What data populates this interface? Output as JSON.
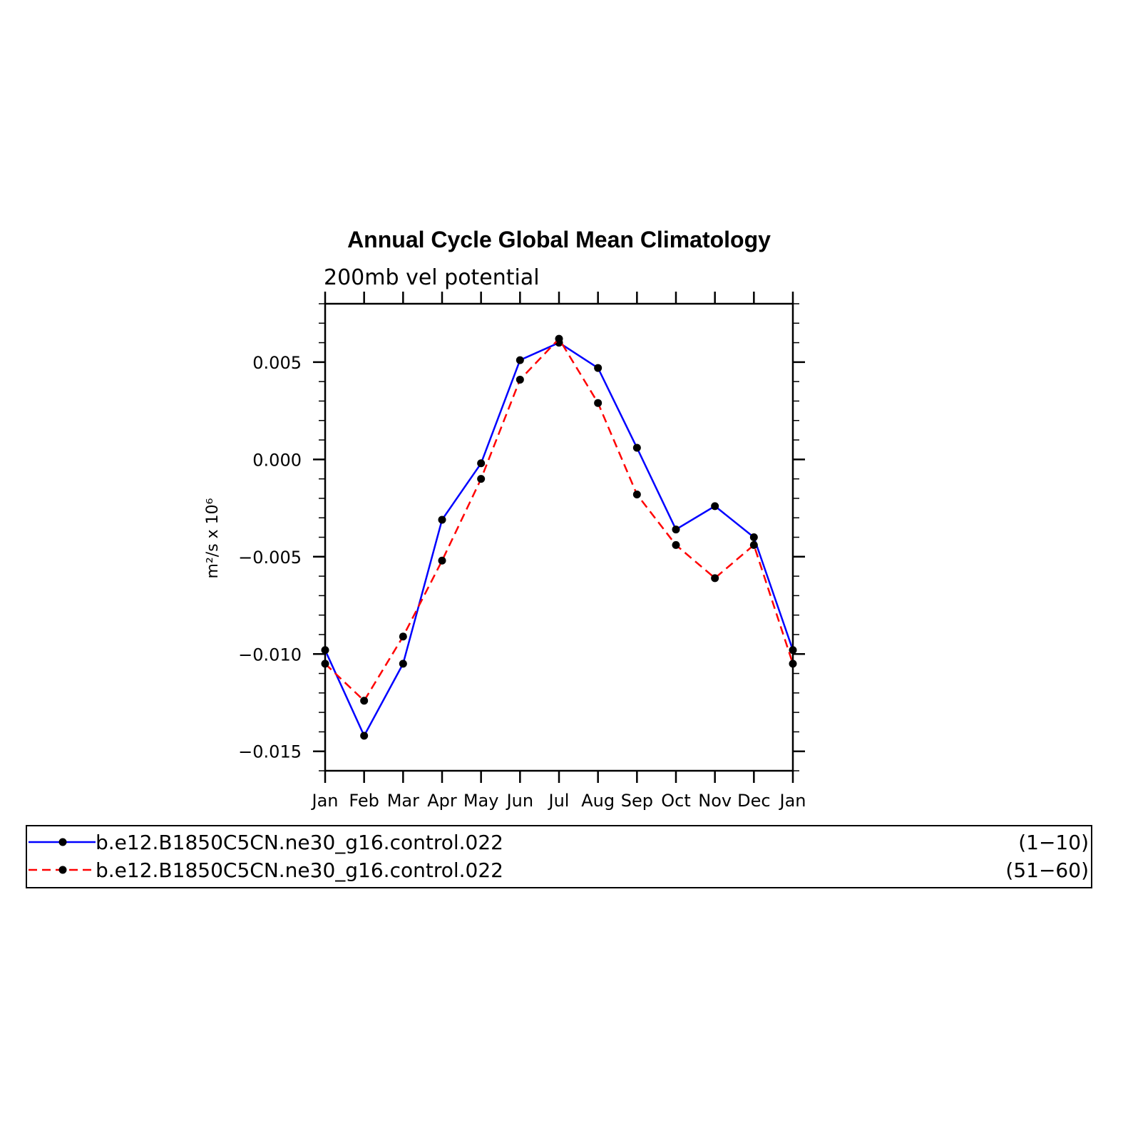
{
  "chart_data": {
    "type": "line",
    "title": "Annual Cycle Global Mean Climatology",
    "subtitle": "200mb vel potential",
    "ylabel": "m²/s x 10⁶",
    "categories": [
      "Jan",
      "Feb",
      "Mar",
      "Apr",
      "May",
      "Jun",
      "Jul",
      "Aug",
      "Sep",
      "Oct",
      "Nov",
      "Dec",
      "Jan"
    ],
    "ylim": [
      -0.016,
      0.008
    ],
    "yticks": [
      {
        "value": 0.005,
        "label": "0.005"
      },
      {
        "value": 0.0,
        "label": "0.000"
      },
      {
        "value": -0.005,
        "label": "−0.005"
      },
      {
        "value": -0.01,
        "label": "−0.010"
      },
      {
        "value": -0.015,
        "label": "−0.015"
      }
    ],
    "series": [
      {
        "name": "b.e12.B1850C5CN.ne30_g16.control.022",
        "years": "(1−10)",
        "color": "#0000ff",
        "dash": "solid",
        "values": [
          -0.0098,
          -0.0142,
          -0.0105,
          -0.0031,
          -0.0002,
          0.0051,
          0.006,
          0.0047,
          0.0006,
          -0.0036,
          -0.0024,
          -0.004,
          -0.0098
        ]
      },
      {
        "name": "b.e12.B1850C5CN.ne30_g16.control.022",
        "years": "(51−60)",
        "color": "#ff0000",
        "dash": "dashed",
        "values": [
          -0.0105,
          -0.0124,
          -0.0091,
          -0.0052,
          -0.001,
          0.0041,
          0.0062,
          0.0029,
          -0.0018,
          -0.0044,
          -0.0061,
          -0.0044,
          -0.0105
        ]
      }
    ],
    "grid": false,
    "legend_position": "bottom"
  }
}
